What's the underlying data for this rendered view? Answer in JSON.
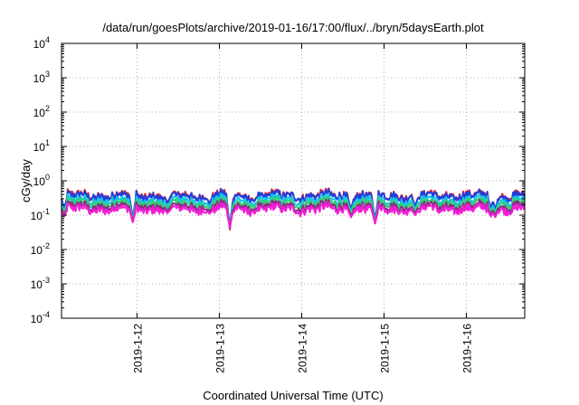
{
  "chart_data": {
    "type": "line",
    "title": "/data/run/goesPlots/archive/2019-01-16/17:00/flux/../bryn/5daysEarth.plot",
    "xlabel": "Coordinated Universal Time (UTC)",
    "ylabel": "cGy/day",
    "y_scale": "log",
    "ylim": [
      0.0001,
      10000
    ],
    "y_ticks": [
      {
        "value": 0.0001,
        "base": "10",
        "exp": "-4"
      },
      {
        "value": 0.001,
        "base": "10",
        "exp": "-3"
      },
      {
        "value": 0.01,
        "base": "10",
        "exp": "-2"
      },
      {
        "value": 0.1,
        "base": "10",
        "exp": "-1"
      },
      {
        "value": 1,
        "base": "10",
        "exp": "0"
      },
      {
        "value": 10,
        "base": "10",
        "exp": "1"
      },
      {
        "value": 100,
        "base": "10",
        "exp": "2"
      },
      {
        "value": 1000,
        "base": "10",
        "exp": "3"
      },
      {
        "value": 10000,
        "base": "10",
        "exp": "4"
      }
    ],
    "xlim": [
      "2019-01-11T02:00",
      "2019-01-16T17:00"
    ],
    "x_ticks": [
      {
        "value": "2019-01-12T00:00",
        "label": "2019-1-12"
      },
      {
        "value": "2019-01-13T00:00",
        "label": "2019-1-13"
      },
      {
        "value": "2019-01-14T00:00",
        "label": "2019-1-14"
      },
      {
        "value": "2019-01-15T00:00",
        "label": "2019-1-15"
      },
      {
        "value": "2019-01-16T00:00",
        "label": "2019-1-16"
      }
    ],
    "grid": true,
    "legend": "none",
    "colors": {
      "red": "#e8262b",
      "blue": "#1f3fe0",
      "cyan": "#14c6e6",
      "green": "#35d070",
      "purple": "#8b2c82",
      "magenta": "#f21ed6"
    },
    "series": [
      {
        "color": "red",
        "baseline": 0.38
      },
      {
        "color": "blue",
        "baseline": 0.36
      },
      {
        "color": "cyan",
        "baseline": 0.27
      },
      {
        "color": "green",
        "baseline": 0.22
      },
      {
        "color": "purple",
        "baseline": 0.18
      },
      {
        "color": "magenta",
        "baseline": 0.15
      }
    ],
    "dips": [
      {
        "time": "2019-01-11T02:40",
        "min": 0.06
      },
      {
        "time": "2019-01-11T22:40",
        "min": 0.03
      },
      {
        "time": "2019-01-12T09:00",
        "min": 0.09
      },
      {
        "time": "2019-01-12T21:00",
        "min": 0.085
      },
      {
        "time": "2019-01-13T03:00",
        "min": 0.015
      },
      {
        "time": "2019-01-13T10:00",
        "min": 0.1
      },
      {
        "time": "2019-01-14T14:30",
        "min": 0.055
      },
      {
        "time": "2019-01-14T21:30",
        "min": 0.025
      },
      {
        "time": "2019-01-15T09:00",
        "min": 0.07
      },
      {
        "time": "2019-01-16T07:10",
        "min": 0.06
      },
      {
        "time": "2019-01-16T08:20",
        "min": 0.055
      }
    ]
  }
}
